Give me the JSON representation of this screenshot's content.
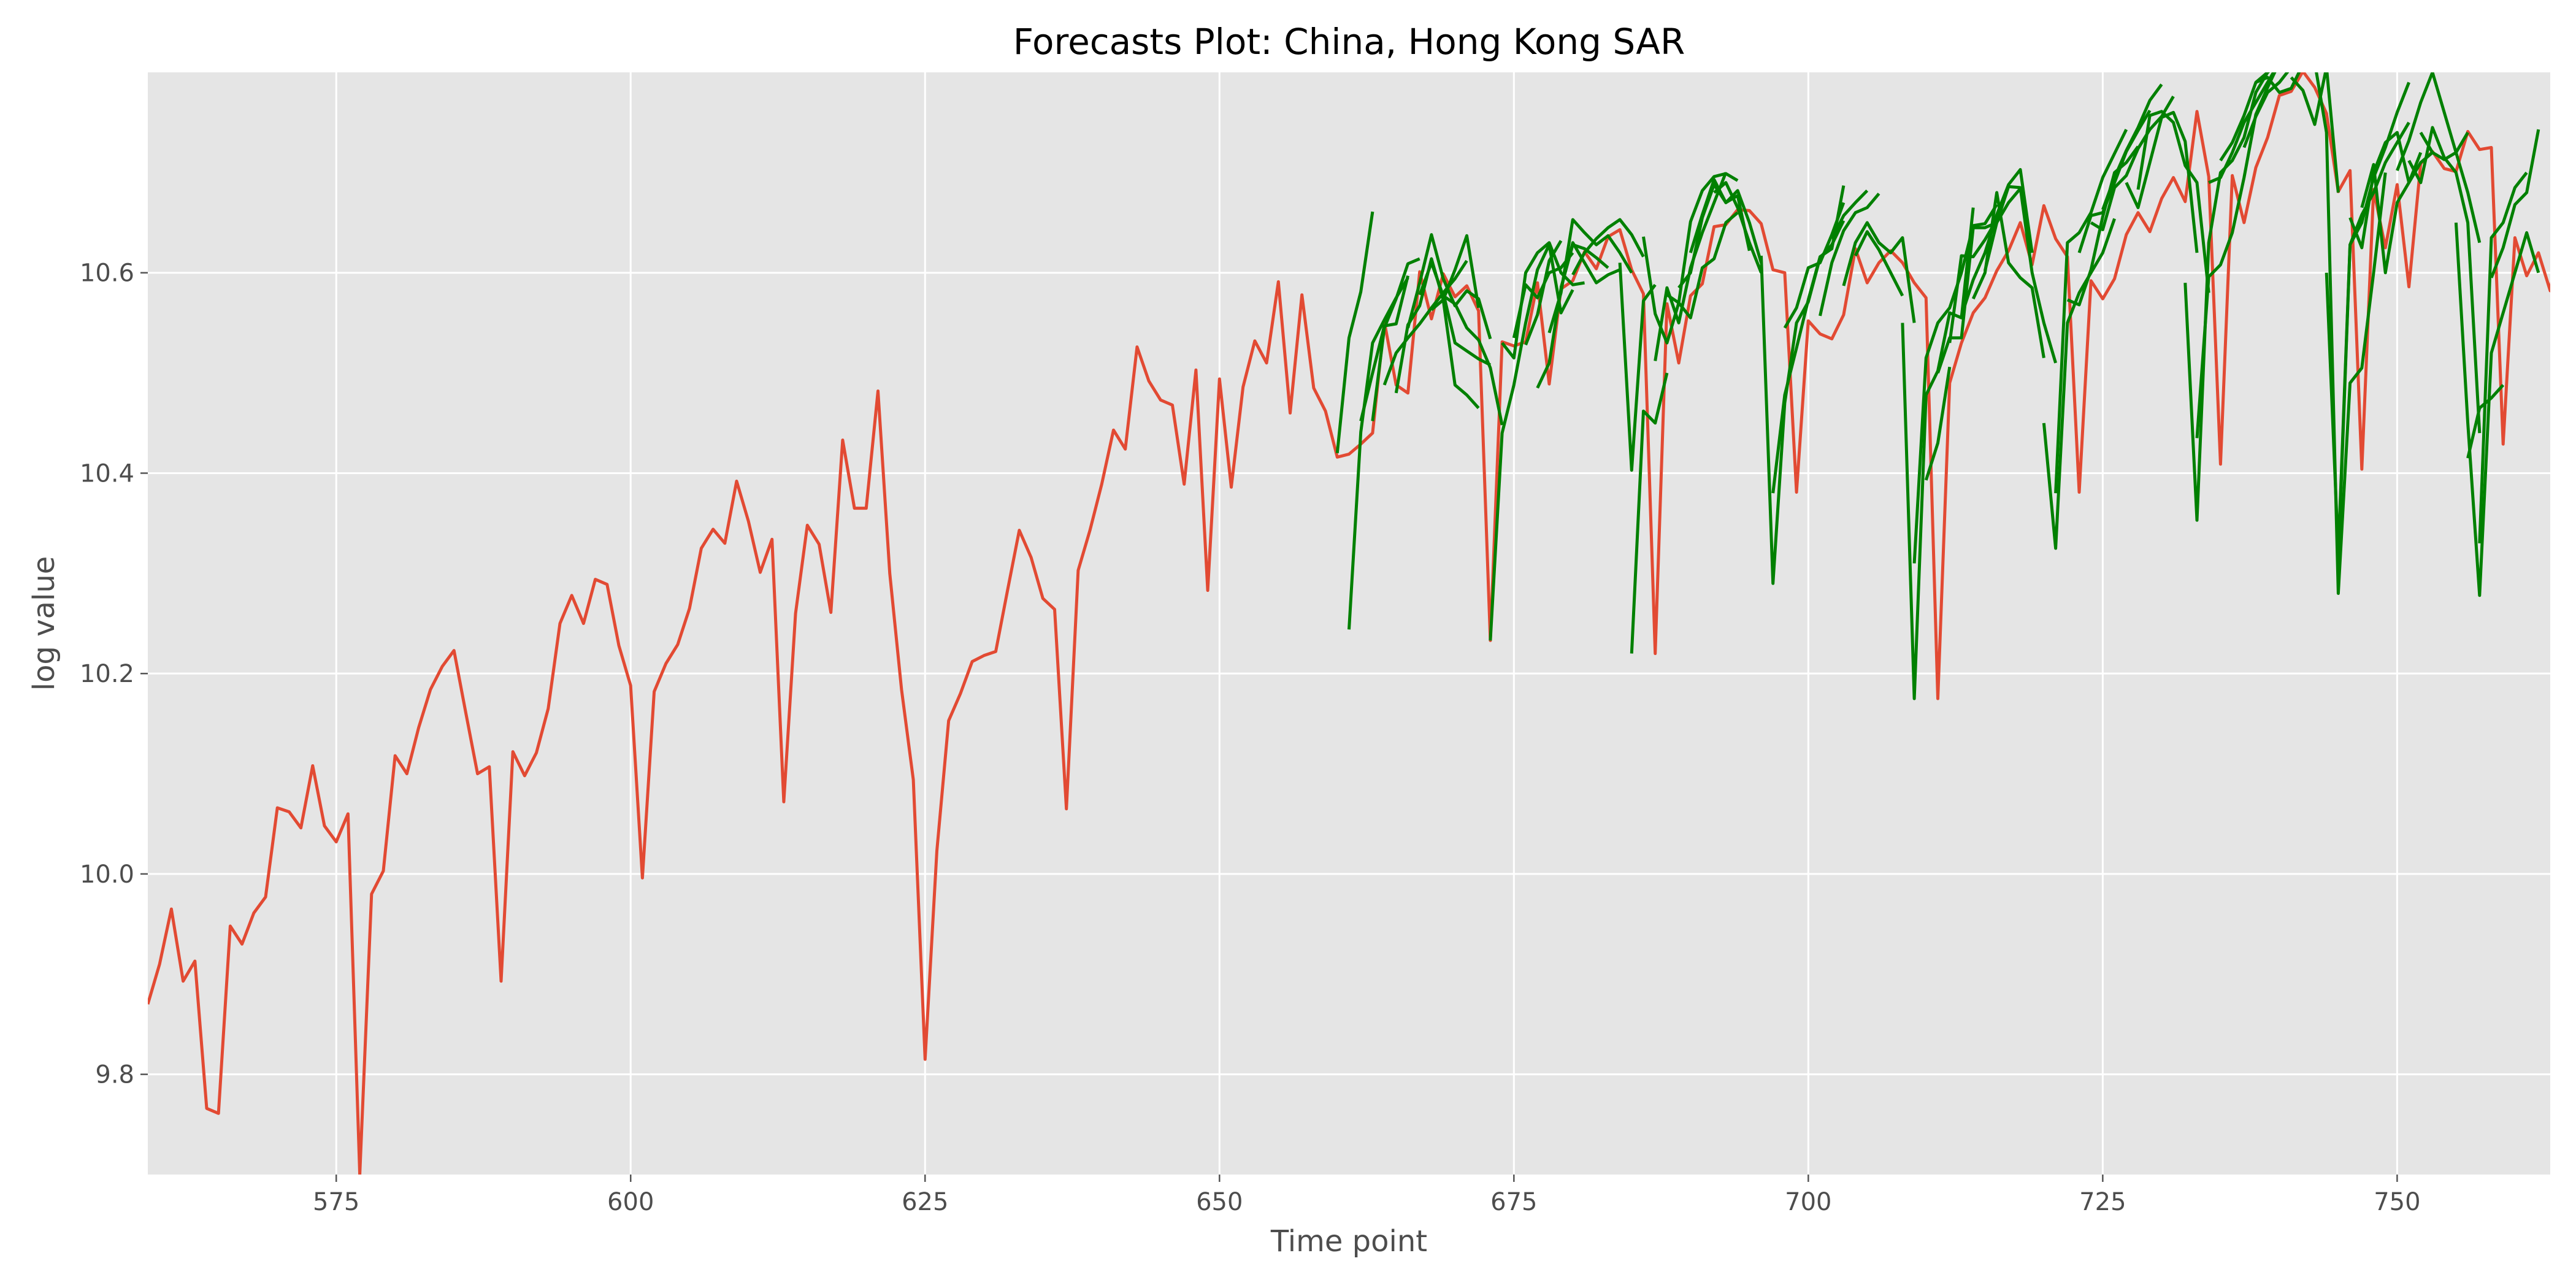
{
  "chart_data": {
    "type": "line",
    "title": "Forecasts Plot: China, Hong Kong SAR",
    "xlabel": "Time point",
    "ylabel": "log value",
    "xlim": [
      559,
      763
    ],
    "ylim": [
      9.7,
      10.8
    ],
    "xticks": [
      575,
      600,
      625,
      650,
      675,
      700,
      725,
      750
    ],
    "yticks": [
      9.8,
      10.0,
      10.2,
      10.4,
      10.6
    ],
    "ytick_labels": [
      "9.8",
      "10.0",
      "10.2",
      "10.4",
      "10.6"
    ],
    "grid": true,
    "background": "#e5e5e5",
    "grid_color": "#ffffff",
    "actual": {
      "color": "#e24a33",
      "x_start": 559,
      "values": [
        9.87,
        9.91,
        9.965,
        9.893,
        9.913,
        9.766,
        9.761,
        9.948,
        9.93,
        9.961,
        9.977,
        10.066,
        10.062,
        10.046,
        10.108,
        10.048,
        10.032,
        10.06,
        9.7,
        9.98,
        10.003,
        10.118,
        10.1,
        10.146,
        10.184,
        10.207,
        10.223,
        10.161,
        10.1,
        10.107,
        9.893,
        10.122,
        10.098,
        10.121,
        10.165,
        10.25,
        10.278,
        10.25,
        10.294,
        10.289,
        10.228,
        10.188,
        9.996,
        10.182,
        10.21,
        10.229,
        10.265,
        10.325,
        10.344,
        10.33,
        10.392,
        10.352,
        10.301,
        10.334,
        10.072,
        10.26,
        10.348,
        10.329,
        10.261,
        10.433,
        10.365,
        10.365,
        10.482,
        10.3,
        10.184,
        10.094,
        9.815,
        10.023,
        10.153,
        10.18,
        10.212,
        10.218,
        10.222,
        10.283,
        10.343,
        10.316,
        10.275,
        10.264,
        10.065,
        10.303,
        10.343,
        10.389,
        10.443,
        10.424,
        10.526,
        10.492,
        10.473,
        10.468,
        10.389,
        10.503,
        10.283,
        10.494,
        10.386,
        10.486,
        10.532,
        10.51,
        10.591,
        10.46,
        10.578,
        10.485,
        10.462,
        10.416,
        10.419,
        10.429,
        10.44,
        10.551,
        10.488,
        10.48,
        10.601,
        10.554,
        10.599,
        10.576,
        10.587,
        10.562,
        10.233,
        10.531,
        10.527,
        10.531,
        10.59,
        10.489,
        10.584,
        10.592,
        10.621,
        10.604,
        10.636,
        10.643,
        10.603,
        10.579,
        10.22,
        10.569,
        10.51,
        10.577,
        10.589,
        10.646,
        10.648,
        10.663,
        10.662,
        10.649,
        10.603,
        10.6,
        10.381,
        10.552,
        10.539,
        10.534,
        10.558,
        10.624,
        10.59,
        10.61,
        10.622,
        10.61,
        10.59,
        10.575,
        10.175,
        10.49,
        10.53,
        10.56,
        10.575,
        10.602,
        10.622,
        10.65,
        10.608,
        10.667,
        10.634,
        10.616,
        10.381,
        10.592,
        10.574,
        10.594,
        10.638,
        10.66,
        10.641,
        10.674,
        10.695,
        10.671,
        10.761,
        10.696,
        10.409,
        10.697,
        10.65,
        10.705,
        10.735,
        10.777,
        10.781,
        10.801,
        10.785,
        10.759,
        10.681,
        10.702,
        10.404,
        10.683,
        10.625,
        10.688,
        10.586,
        10.709,
        10.721,
        10.704,
        10.701,
        10.741,
        10.723,
        10.725,
        10.429,
        10.635,
        10.597,
        10.62,
        10.582,
        10.652
      ]
    },
    "forecasts": {
      "color": "#008000",
      "series": [
        {
          "x_start": 660,
          "values": [
            10.42,
            10.535,
            10.581,
            10.661
          ]
        },
        {
          "x_start": 661,
          "values": [
            10.244,
            10.441,
            10.53,
            10.553,
            10.575,
            10.595
          ]
        },
        {
          "x_start": 662,
          "values": [
            10.452,
            10.5,
            10.547,
            10.549,
            10.597
          ]
        },
        {
          "x_start": 663,
          "values": [
            10.452,
            10.545,
            10.574,
            10.609,
            10.614
          ]
        },
        {
          "x_start": 664,
          "values": [
            10.488,
            10.52,
            10.535,
            10.549,
            10.565,
            10.58,
            10.594,
            10.612
          ]
        },
        {
          "x_start": 665,
          "values": [
            10.48,
            10.548,
            10.567,
            10.614,
            10.573,
            10.603,
            10.637,
            10.565
          ]
        },
        {
          "x_start": 666,
          "values": [
            10.545,
            10.59,
            10.638,
            10.594,
            10.567,
            10.582,
            10.574,
            10.534
          ]
        },
        {
          "x_start": 667,
          "values": [
            10.578,
            10.61,
            10.577,
            10.569,
            10.545,
            10.533,
            10.505,
            10.448
          ]
        },
        {
          "x_start": 668,
          "values": [
            10.563,
            10.573,
            10.488,
            10.478,
            10.465
          ]
        },
        {
          "x_start": 669,
          "values": [
            10.58,
            10.53,
            10.522,
            10.514,
            10.508
          ]
        },
        {
          "x_start": 673,
          "values": [
            10.233,
            10.44,
            10.488,
            10.55,
            10.603,
            10.628,
            10.56,
            10.583
          ]
        },
        {
          "x_start": 674,
          "values": [
            10.53,
            10.515,
            10.6,
            10.62,
            10.63,
            10.6,
            10.588,
            10.59
          ]
        },
        {
          "x_start": 675,
          "values": [
            10.535,
            10.588,
            10.575,
            10.6,
            10.605,
            10.62
          ]
        },
        {
          "x_start": 676,
          "values": [
            10.528,
            10.558,
            10.612,
            10.632
          ]
        },
        {
          "x_start": 677,
          "values": [
            10.485,
            10.51,
            10.584,
            10.63,
            10.61,
            10.59,
            10.598,
            10.603
          ]
        },
        {
          "x_start": 678,
          "values": [
            10.54,
            10.58,
            10.653,
            10.64,
            10.628,
            10.637,
            10.62,
            10.6
          ]
        },
        {
          "x_start": 679,
          "values": [
            10.585,
            10.628,
            10.624,
            10.615,
            10.605
          ]
        },
        {
          "x_start": 680,
          "values": [
            10.598,
            10.62,
            10.634,
            10.645,
            10.653,
            10.638,
            10.616
          ]
        },
        {
          "x_start": 684,
          "values": [
            10.61,
            10.403,
            10.572,
            10.588
          ]
        },
        {
          "x_start": 685,
          "values": [
            10.22,
            10.462,
            10.45,
            10.5
          ]
        },
        {
          "x_start": 686,
          "values": [
            10.636,
            10.559,
            10.53,
            10.57,
            10.555,
            10.605,
            10.614,
            10.65,
            10.66
          ]
        },
        {
          "x_start": 687,
          "values": [
            10.512,
            10.585,
            10.55,
            10.605,
            10.64,
            10.67,
            10.7
          ]
        },
        {
          "x_start": 688,
          "values": [
            10.578,
            10.57,
            10.651,
            10.682,
            10.696,
            10.699,
            10.692
          ]
        },
        {
          "x_start": 689,
          "values": [
            10.585,
            10.6,
            10.655,
            10.688,
            10.67,
            10.677,
            10.622
          ]
        },
        {
          "x_start": 690,
          "values": [
            10.62,
            10.658,
            10.693,
            10.67,
            10.682,
            10.65,
            10.61
          ]
        },
        {
          "x_start": 692,
          "values": [
            10.68,
            10.69,
            10.665,
            10.63,
            10.6
          ]
        },
        {
          "x_start": 696,
          "values": [
            10.617,
            10.29,
            10.47,
            10.55,
            10.571,
            10.615,
            10.628,
            10.652
          ]
        },
        {
          "x_start": 697,
          "values": [
            10.38,
            10.478,
            10.525,
            10.573,
            10.616,
            10.624,
            10.687
          ]
        },
        {
          "x_start": 698,
          "values": [
            10.545,
            10.565,
            10.605,
            10.61,
            10.638,
            10.67
          ]
        },
        {
          "x_start": 701,
          "values": [
            10.557,
            10.61,
            10.642,
            10.66,
            10.665,
            10.679
          ]
        },
        {
          "x_start": 702,
          "values": [
            10.634,
            10.657,
            10.67,
            10.682
          ]
        },
        {
          "x_start": 703,
          "values": [
            10.587,
            10.63,
            10.65,
            10.63,
            10.62,
            10.635,
            10.55
          ]
        },
        {
          "x_start": 704,
          "values": [
            10.617,
            10.641,
            10.623,
            10.6,
            10.577
          ]
        },
        {
          "x_start": 708,
          "values": [
            10.55,
            10.175,
            10.478,
            10.502,
            10.56,
            10.555,
            10.665
          ]
        },
        {
          "x_start": 709,
          "values": [
            10.31,
            10.515,
            10.55,
            10.565,
            10.6,
            10.647,
            10.649,
            10.668
          ]
        },
        {
          "x_start": 710,
          "values": [
            10.393,
            10.43,
            10.506
          ]
        },
        {
          "x_start": 711,
          "values": [
            10.5,
            10.535,
            10.535,
            10.645,
            10.645,
            10.65,
            10.67,
            10.684
          ]
        },
        {
          "x_start": 712,
          "values": [
            10.53,
            10.617,
            10.616,
            10.633,
            10.653
          ]
        },
        {
          "x_start": 713,
          "values": [
            10.557,
            10.593,
            10.62,
            10.658,
            10.688,
            10.703,
            10.62
          ]
        },
        {
          "x_start": 714,
          "values": [
            10.574,
            10.6,
            10.68,
            10.61,
            10.595,
            10.585,
            10.515
          ]
        },
        {
          "x_start": 715,
          "values": [
            10.602,
            10.65,
            10.686,
            10.685,
            10.6,
            10.55,
            10.51
          ]
        },
        {
          "x_start": 720,
          "values": [
            10.45,
            10.325,
            10.55,
            10.58,
            10.6,
            10.62,
            10.654
          ]
        },
        {
          "x_start": 721,
          "values": [
            10.38,
            10.63,
            10.64,
            10.66,
            10.695,
            10.719,
            10.743
          ]
        },
        {
          "x_start": 722,
          "values": [
            10.573,
            10.568,
            10.603,
            10.656,
            10.7,
            10.71,
            10.726
          ]
        },
        {
          "x_start": 723,
          "values": [
            10.62,
            10.657,
            10.66,
            10.69,
            10.721,
            10.742,
            10.762
          ]
        },
        {
          "x_start": 724,
          "values": [
            10.65,
            10.643,
            10.685,
            10.697,
            10.724,
            10.743,
            10.756,
            10.776
          ]
        },
        {
          "x_start": 725,
          "values": [
            10.663,
            10.695,
            10.722,
            10.745,
            10.772,
            10.788
          ]
        },
        {
          "x_start": 727,
          "values": [
            10.69,
            10.665,
            10.71,
            10.755,
            10.76,
            10.731,
            10.62
          ]
        },
        {
          "x_start": 728,
          "values": [
            10.683,
            10.757,
            10.761,
            10.75,
            10.707,
            10.69,
            10.58
          ]
        },
        {
          "x_start": 732,
          "values": [
            10.59,
            10.353,
            10.63,
            10.7,
            10.712,
            10.735,
            10.78,
            10.8
          ]
        },
        {
          "x_start": 733,
          "values": [
            10.435,
            10.596,
            10.608,
            10.64,
            10.695,
            10.758,
            10.785,
            10.81
          ]
        },
        {
          "x_start": 734,
          "values": [
            10.69,
            10.695,
            10.72,
            10.75,
            10.77,
            10.79,
            10.81
          ]
        },
        {
          "x_start": 735,
          "values": [
            10.712,
            10.73,
            10.757,
            10.79,
            10.8,
            10.81
          ]
        },
        {
          "x_start": 737,
          "values": [
            10.725,
            10.756,
            10.78,
            10.79,
            10.805,
            10.81
          ]
        },
        {
          "x_start": 738,
          "values": [
            10.79,
            10.795,
            10.78,
            10.784,
            10.808
          ]
        },
        {
          "x_start": 741,
          "values": [
            10.795,
            10.782,
            10.748,
            10.805,
            10.68
          ]
        },
        {
          "x_start": 743,
          "values": [
            10.81,
            10.74,
            10.28,
            10.49,
            10.505,
            10.6,
            10.7
          ]
        },
        {
          "x_start": 744,
          "values": [
            10.6,
            10.32,
            10.628,
            10.65,
            10.695,
            10.725,
            10.76,
            10.79
          ]
        },
        {
          "x_start": 745,
          "values": [
            10.31,
            10.628,
            10.658,
            10.68,
            10.71,
            10.73,
            10.75
          ]
        },
        {
          "x_start": 746,
          "values": [
            10.655,
            10.625,
            10.7,
            10.73,
            10.74,
            10.69,
            10.72
          ]
        },
        {
          "x_start": 747,
          "values": [
            10.665,
            10.708,
            10.6,
            10.67,
            10.69,
            10.71,
            10.72
          ]
        },
        {
          "x_start": 750,
          "values": [
            10.702,
            10.732,
            10.77,
            10.8,
            10.76,
            10.72,
            10.74
          ]
        },
        {
          "x_start": 751,
          "values": [
            10.712,
            10.69,
            10.745,
            10.715,
            10.7,
            10.65,
            10.44
          ]
        },
        {
          "x_start": 752,
          "values": [
            10.74,
            10.72,
            10.713,
            10.72,
            10.68,
            10.63
          ]
        },
        {
          "x_start": 755,
          "values": [
            10.65,
            10.45,
            10.278,
            10.52,
            10.56,
            10.6,
            10.64,
            10.6
          ]
        },
        {
          "x_start": 756,
          "values": [
            10.415,
            10.465,
            10.475,
            10.488
          ]
        },
        {
          "x_start": 757,
          "values": [
            10.33,
            10.635,
            10.65,
            10.685,
            10.7
          ]
        },
        {
          "x_start": 758,
          "values": [
            10.595,
            10.625,
            10.668,
            10.68,
            10.743
          ]
        }
      ]
    }
  }
}
